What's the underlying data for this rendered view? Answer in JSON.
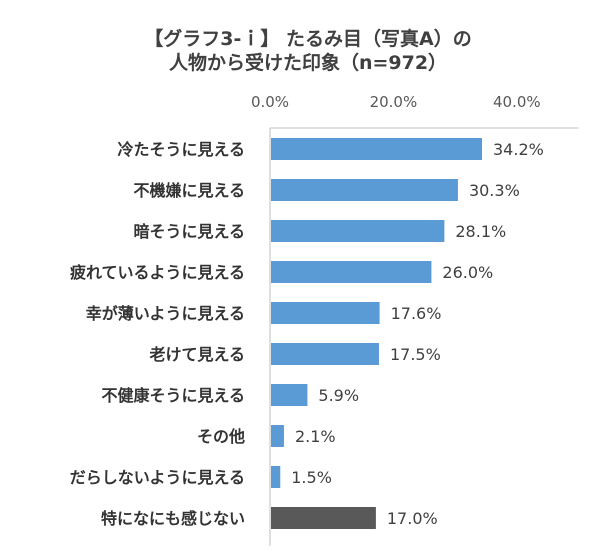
{
  "chart_data": {
    "type": "bar",
    "orientation": "horizontal",
    "title_line1": "【グラフ3-ｉ】 たるみ目（写真A）の",
    "title_line2": "人物から受けた印象（n=972）",
    "categories": [
      "冷たそうに見える",
      "不機嫌に見える",
      "暗そうに見える",
      "疲れているように見える",
      "幸が薄いように見える",
      "老けて見える",
      "不健康そうに見える",
      "その他",
      "だらしないように見える",
      "特になにも感じない"
    ],
    "values": [
      34.2,
      30.3,
      28.1,
      26.0,
      17.6,
      17.5,
      5.9,
      2.1,
      1.5,
      17.0
    ],
    "data_labels": [
      "34.2%",
      "30.3%",
      "28.1%",
      "26.0%",
      "17.6%",
      "17.5%",
      "5.9%",
      "2.1%",
      "1.5%",
      "17.0%"
    ],
    "x_ticks": [
      "0.0%",
      "20.0%",
      "40.0%"
    ],
    "x_tick_values": [
      0,
      20,
      40
    ],
    "xlim": [
      0,
      50
    ],
    "axis_position": "top",
    "colors": {
      "main": "#5B9BD5",
      "last": "#595959"
    }
  }
}
